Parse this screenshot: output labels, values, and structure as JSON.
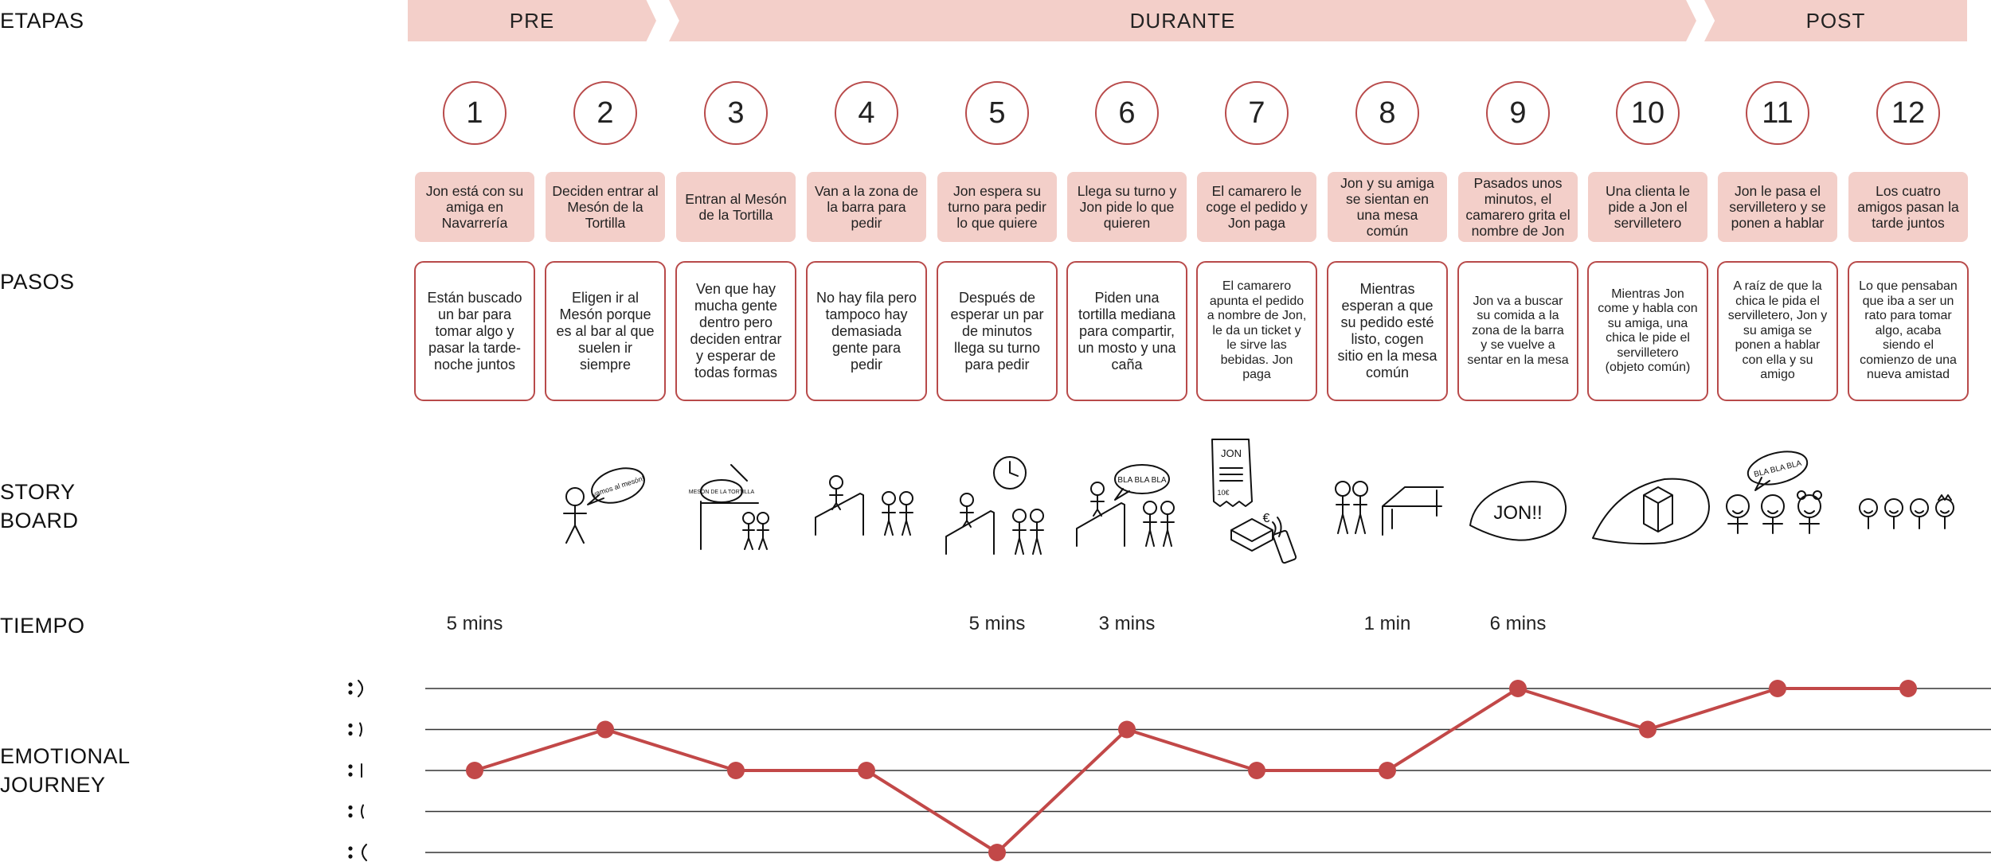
{
  "row_labels": {
    "etapas": "ETAPAS",
    "pasos": "PASOS",
    "storyboard": "STORY\nBOARD",
    "tiempo": "TIEMPO",
    "emotional": "EMOTIONAL\nJOURNEY"
  },
  "phases": [
    "PRE",
    "DURANTE",
    "POST"
  ],
  "steps": [
    {
      "n": "1",
      "title": "Jon está con su amiga en Navarrería",
      "desc": "Están buscado un bar para tomar algo y pasar la tarde-noche juntos",
      "time": "5 mins"
    },
    {
      "n": "2",
      "title": "Deciden entrar al Mesón de la Tortilla",
      "desc": "Eligen ir al Mesón porque es al bar al que suelen ir siempre",
      "time": ""
    },
    {
      "n": "3",
      "title": "Entran al Mesón de la Tortilla",
      "desc": "Ven que hay mucha gente dentro pero deciden entrar y esperar de todas formas",
      "time": ""
    },
    {
      "n": "4",
      "title": "Van a la zona de la barra para pedir",
      "desc": "No hay fila pero tampoco hay demasiada gente para pedir",
      "time": ""
    },
    {
      "n": "5",
      "title": "Jon espera su turno para pedir lo que quiere",
      "desc": "Después de esperar un par de minutos llega su turno para pedir",
      "time": "5 mins"
    },
    {
      "n": "6",
      "title": "Llega su turno y Jon pide lo que quieren",
      "desc": "Piden una tortilla mediana para compartir, un mosto y una caña",
      "time": "3 mins"
    },
    {
      "n": "7",
      "title": "El camarero le coge el pedido y Jon paga",
      "desc": "El camarero apunta el pedido a nombre de Jon, le da un ticket y le sirve las bebidas. Jon paga",
      "time": ""
    },
    {
      "n": "8",
      "title": "Jon y su amiga se sientan en una mesa común",
      "desc": "Mientras esperan a que su pedido esté listo, cogen sitio en la mesa común",
      "time": "1 min"
    },
    {
      "n": "9",
      "title": "Pasados unos minutos, el camarero grita el nombre de Jon",
      "desc": "Jon va a buscar su comida a la zona de la barra y se vuelve a sentar en la mesa",
      "time": "6 mins"
    },
    {
      "n": "10",
      "title": "Una clienta le pide a Jon el servilletero",
      "desc": "Mientras Jon come y habla con su amiga, una chica le pide el servilletero (objeto común)",
      "time": ""
    },
    {
      "n": "11",
      "title": "Jon le pasa el servilletero y se ponen a hablar",
      "desc": "A raíz de que la chica le pida el servilletero, Jon y su amiga se ponen a hablar con ella y su amigo",
      "time": ""
    },
    {
      "n": "12",
      "title": "Los cuatro amigos pasan la tarde juntos",
      "desc": "Lo que pensaban que iba a ser un rato para tomar algo, acaba siendo el comienzo de una nueva amistad",
      "time": ""
    }
  ],
  "storyboard_text": {
    "bubble2": "vamos al mesón!",
    "sign3": "MESÓN DE LA TORTILLA",
    "bubble6": "BLA BLA BLA",
    "ticket7": "JON",
    "price7": "10€",
    "euro7": "€",
    "bubble9": "JON!!",
    "bubble11": "BLA BLA BLA"
  },
  "chart_data": {
    "type": "line",
    "x": [
      1,
      2,
      3,
      4,
      5,
      6,
      7,
      8,
      9,
      10,
      11,
      12
    ],
    "values": [
      3,
      4,
      3,
      3,
      1,
      4,
      3,
      3,
      5,
      4,
      5,
      5
    ],
    "ylim": [
      1,
      5
    ],
    "levels": 5,
    "colors": {
      "line": "#c24848",
      "point": "#c24848",
      "grid": "#333333"
    }
  }
}
